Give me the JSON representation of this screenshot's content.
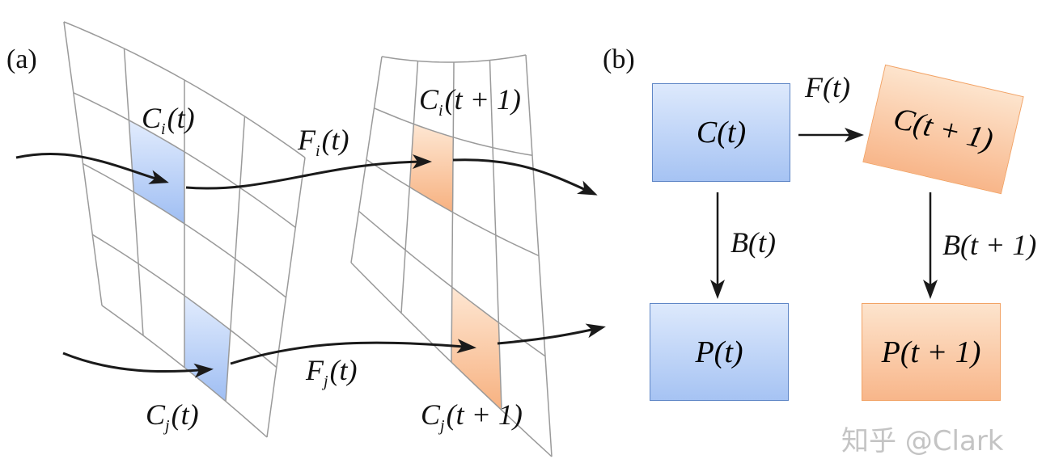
{
  "panel_a": {
    "tag": "(a)",
    "labels": {
      "ci_t": {
        "base": "C",
        "sub": "i",
        "arg": "(t)"
      },
      "fi_t": {
        "base": "F",
        "sub": "i",
        "arg": "(t)"
      },
      "ci_t1": {
        "base": "C",
        "sub": "i",
        "arg": "(t + 1)"
      },
      "fj_t": {
        "base": "F",
        "sub": "j",
        "arg": "(t)"
      },
      "cj_t": {
        "base": "C",
        "sub": "j",
        "arg": "(t)"
      },
      "cj_t1": {
        "base": "C",
        "sub": "j",
        "arg": "(t + 1)"
      }
    }
  },
  "panel_b": {
    "tag": "(b)",
    "boxes": {
      "c_t": {
        "base": "C",
        "arg": "(t)"
      },
      "c_t1": {
        "base": "C",
        "arg": "(t + 1)"
      },
      "p_t": {
        "base": "P",
        "arg": "(t)"
      },
      "p_t1": {
        "base": "P",
        "arg": "(t + 1)"
      }
    },
    "edges": {
      "f_t": {
        "base": "F",
        "arg": "(t)"
      },
      "b_t": {
        "base": "B",
        "arg": "(t)"
      },
      "b_t1": {
        "base": "B",
        "arg": "(t + 1)"
      }
    }
  },
  "watermark": "知乎 @Clark",
  "colors": {
    "blue_fill": "#a6c3f3",
    "blue_border": "#5f86c6",
    "orange_fill": "#f8b68a",
    "orange_border": "#f2a366",
    "grid": "#9a9a9a",
    "arrow": "#1a1a1a"
  }
}
